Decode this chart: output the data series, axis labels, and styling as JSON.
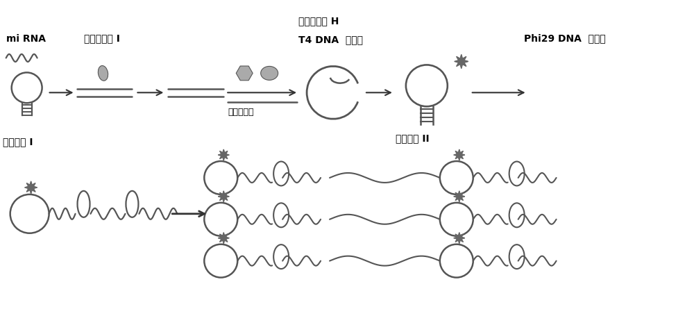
{
  "bg_color": "#ffffff",
  "line_color": "#555555",
  "text_color": "#000000",
  "labels": {
    "mirna": "mi RNA",
    "exo1": "核酸外切酶 I",
    "rnah": "核糖核酸酶 H",
    "t4": "T4 DNA  连接酶",
    "phi29": "Phi29 DNA  聚合酶",
    "phospho": "磷酸化探针",
    "hairpin1": "发卡探针 I",
    "hairpin2": "发卡探针 II"
  },
  "font_size_label": 10,
  "font_size_small": 9
}
